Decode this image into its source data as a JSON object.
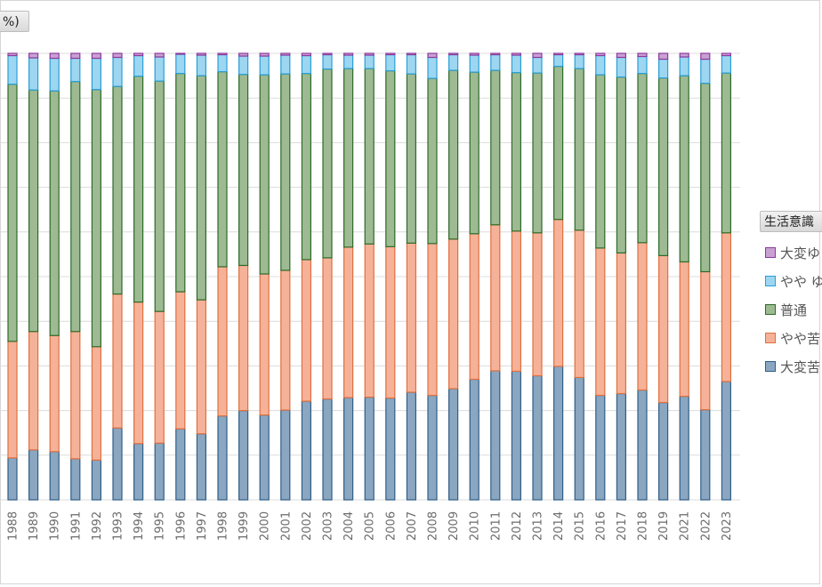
{
  "unit_label": "%)",
  "legend_title": "生活意識",
  "chart_data": {
    "type": "bar",
    "stacked": true,
    "ylim": [
      0,
      100
    ],
    "grid": true,
    "legend_position": "right",
    "categories": [
      "1988",
      "1989",
      "1990",
      "1991",
      "1992",
      "1993",
      "1994",
      "1995",
      "1996",
      "1997",
      "1998",
      "1999",
      "2000",
      "2001",
      "2002",
      "2003",
      "2004",
      "2005",
      "2006",
      "2007",
      "2008",
      "2009",
      "2010",
      "2011",
      "2012",
      "2013",
      "2014",
      "2015",
      "2016",
      "2017",
      "2018",
      "2019",
      "2021",
      "2022",
      "2023"
    ],
    "series": [
      {
        "name": "大変苦",
        "color": "#8aa6c0",
        "edge": "#2f5f88",
        "values": [
          9.4,
          11.2,
          10.8,
          9.2,
          8.9,
          16.1,
          12.6,
          12.7,
          15.9,
          14.8,
          18.8,
          20.0,
          19.0,
          20.1,
          22.1,
          22.6,
          22.9,
          23.0,
          22.8,
          24.1,
          23.4,
          24.9,
          27.0,
          28.9,
          28.8,
          27.8,
          29.9,
          27.4,
          23.4,
          23.8,
          24.6,
          21.8,
          23.2,
          20.2,
          26.5
        ]
      },
      {
        "name": "やや苦",
        "color": "#f6b298",
        "edge": "#e0703f",
        "values": [
          26.1,
          26.5,
          26.0,
          28.5,
          25.4,
          30.0,
          31.7,
          29.5,
          30.7,
          30.0,
          33.4,
          32.5,
          31.6,
          31.3,
          31.7,
          31.6,
          33.7,
          34.3,
          33.9,
          33.4,
          34.0,
          33.5,
          32.6,
          32.7,
          31.4,
          32.0,
          32.9,
          33.0,
          33.0,
          31.5,
          33.0,
          32.9,
          30.1,
          30.9,
          33.3
        ]
      },
      {
        "name": "普通",
        "color": "#9dba92",
        "edge": "#2e6b2a",
        "values": [
          57.6,
          54.1,
          54.8,
          56.0,
          57.6,
          46.5,
          50.6,
          51.6,
          48.9,
          50.2,
          43.7,
          42.8,
          44.6,
          44.0,
          41.7,
          42.3,
          40.0,
          39.3,
          39.4,
          37.9,
          37.0,
          37.8,
          36.2,
          34.6,
          35.5,
          35.8,
          34.3,
          36.2,
          38.8,
          39.4,
          37.9,
          39.8,
          41.7,
          42.2,
          35.8
        ]
      },
      {
        "name": "やや ゆ",
        "color": "#9dd6f0",
        "edge": "#2a9fd8",
        "values": [
          6.4,
          7.2,
          7.3,
          5.2,
          7.0,
          6.5,
          4.6,
          5.4,
          4.3,
          4.6,
          3.8,
          4.1,
          4.2,
          4.2,
          4.0,
          3.2,
          3.0,
          3.0,
          3.6,
          4.3,
          4.7,
          3.5,
          3.8,
          3.5,
          3.9,
          3.5,
          2.6,
          3.1,
          4.3,
          4.4,
          3.8,
          4.2,
          4.2,
          5.4,
          3.9
        ]
      },
      {
        "name": "大変ゆ",
        "color": "#c9a0d2",
        "edge": "#8e3a9e",
        "values": [
          0.5,
          1.0,
          1.1,
          1.1,
          1.1,
          0.9,
          0.5,
          0.8,
          0.2,
          0.4,
          0.3,
          0.6,
          0.6,
          0.4,
          0.5,
          0.3,
          0.4,
          0.4,
          0.3,
          0.3,
          0.9,
          0.3,
          0.4,
          0.3,
          0.4,
          0.9,
          0.3,
          0.3,
          0.5,
          0.9,
          0.7,
          1.3,
          0.8,
          1.3,
          0.5
        ]
      }
    ]
  }
}
